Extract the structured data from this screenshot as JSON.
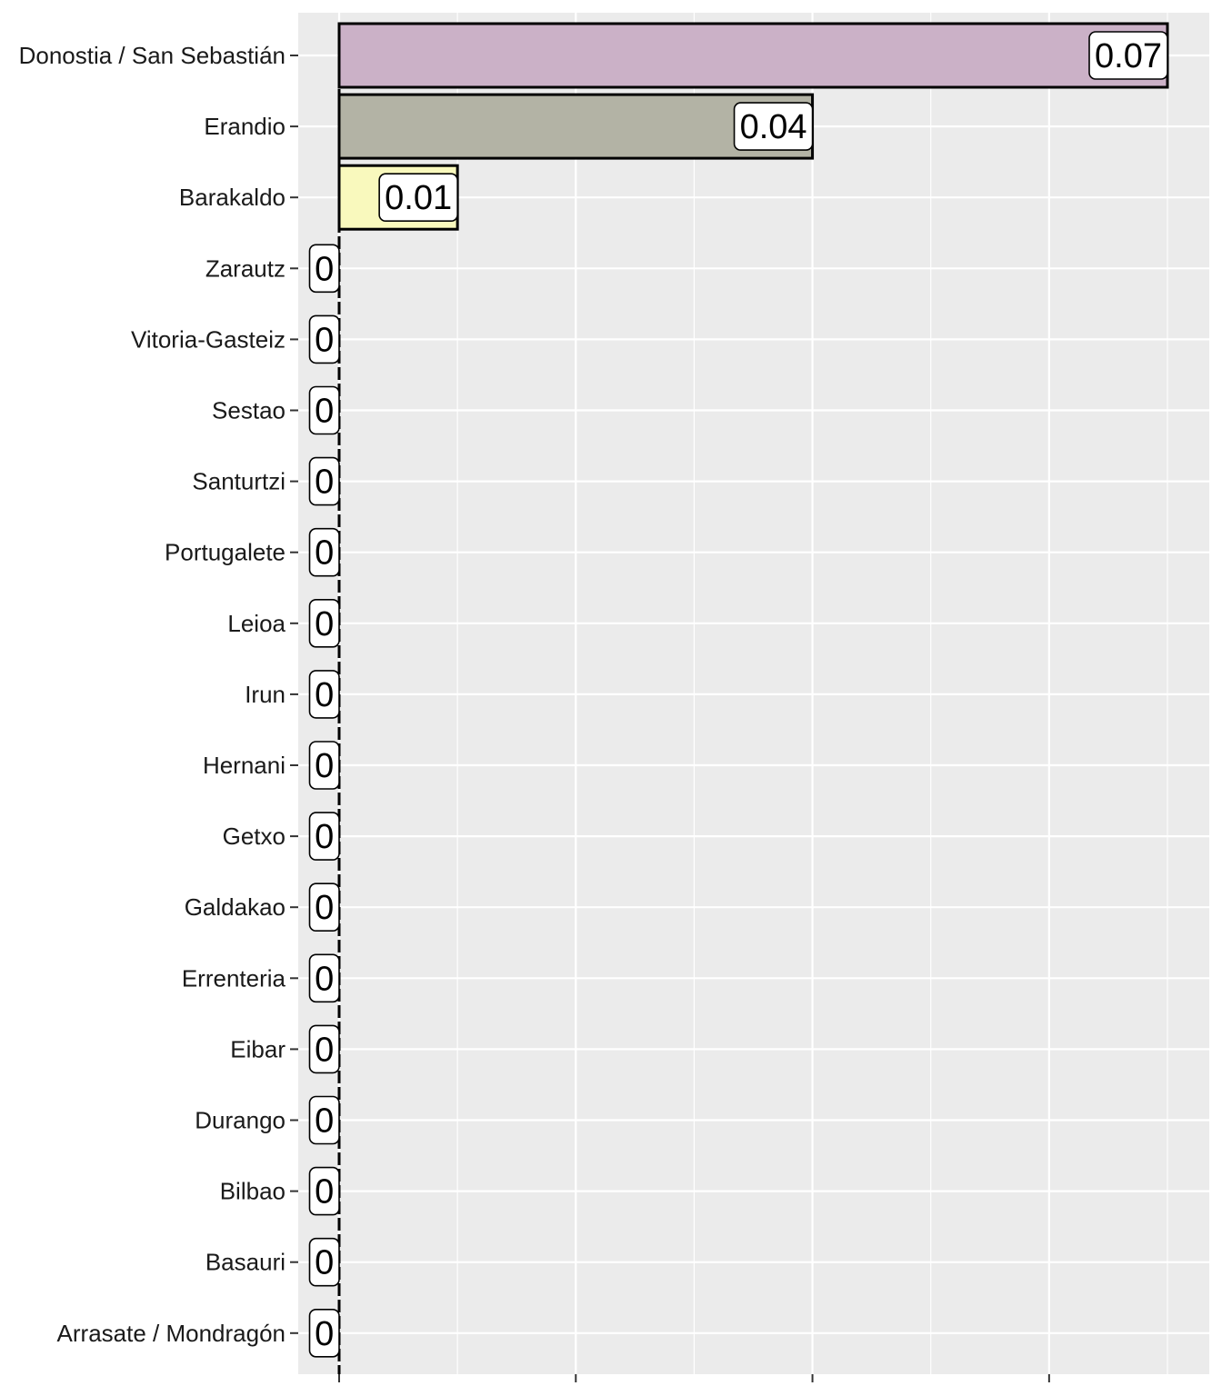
{
  "chart_data": {
    "type": "bar",
    "orientation": "horizontal",
    "title": "",
    "xlabel": "",
    "ylabel": "",
    "xlim": [
      0,
      0.07
    ],
    "grid": true,
    "legend": "none",
    "categories": [
      "Donostia / San Sebastián",
      "Erandio",
      "Barakaldo",
      "Zarautz",
      "Vitoria-Gasteiz",
      "Sestao",
      "Santurtzi",
      "Portugalete",
      "Leioa",
      "Irun",
      "Hernani",
      "Getxo",
      "Galdakao",
      "Errenteria",
      "Eibar",
      "Durango",
      "Bilbao",
      "Basauri",
      "Arrasate / Mondragón"
    ],
    "values": [
      0.07,
      0.04,
      0.01,
      0,
      0,
      0,
      0,
      0,
      0,
      0,
      0,
      0,
      0,
      0,
      0,
      0,
      0,
      0,
      0
    ],
    "value_labels": [
      "0.07",
      "0.04",
      "0.01",
      "0",
      "0",
      "0",
      "0",
      "0",
      "0",
      "0",
      "0",
      "0",
      "0",
      "0",
      "0",
      "0",
      "0",
      "0",
      "0"
    ],
    "colors": [
      "#cbb1c7",
      "#b3b3a5",
      "#f9f9bd",
      "#ffffff",
      "#ffffff",
      "#ffffff",
      "#ffffff",
      "#ffffff",
      "#ffffff",
      "#ffffff",
      "#ffffff",
      "#ffffff",
      "#ffffff",
      "#ffffff",
      "#ffffff",
      "#ffffff",
      "#ffffff",
      "#ffffff",
      "#ffffff"
    ],
    "panel_color": "#ebebeb",
    "grid_color": "#ffffff"
  }
}
